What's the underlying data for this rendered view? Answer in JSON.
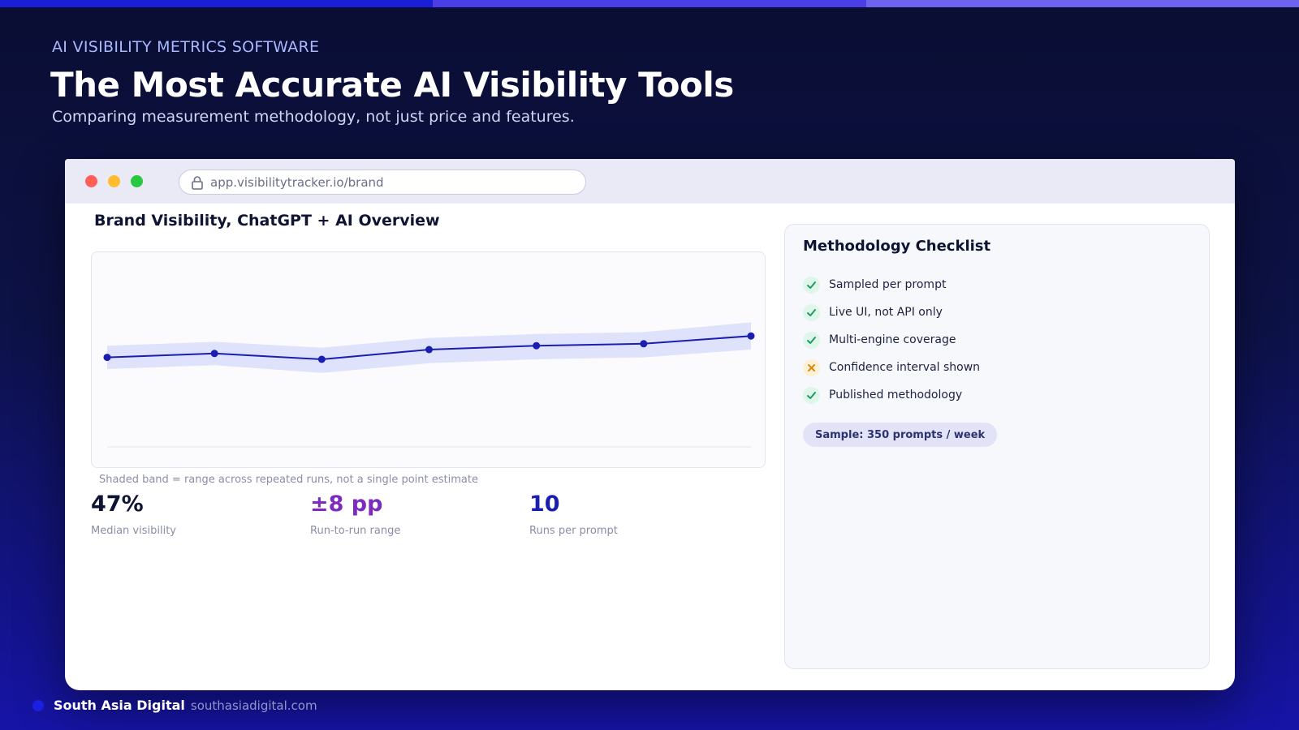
{
  "header": {
    "eyebrow": "AI VISIBILITY METRICS SOFTWARE",
    "title": "The Most Accurate AI Visibility Tools",
    "subtitle": "Comparing measurement methodology, not just price and features."
  },
  "browser": {
    "url": "app.visibilitytracker.io/brand"
  },
  "panel": {
    "title": "Brand Visibility, ChatGPT + AI Overview",
    "chart_note": "Shaded band = range across repeated runs, not a single point estimate"
  },
  "chart_data": {
    "type": "line",
    "title": "",
    "xlabel": "",
    "ylabel": "",
    "ylim": [
      0,
      100
    ],
    "series": [
      {
        "values": [
          46,
          48,
          45,
          50,
          52,
          53,
          57
        ],
        "band_low": [
          40,
          42,
          38,
          43,
          45,
          46,
          50
        ],
        "band_high": [
          52,
          54,
          51,
          56,
          58,
          59,
          64
        ]
      }
    ],
    "line_color": "#1a1fb0",
    "band_color": "#dfe2fb",
    "grid": false
  },
  "stats": [
    {
      "value": "47%",
      "label": "Median visibility"
    },
    {
      "value": "±8 pp",
      "label": "Run-to-run range"
    },
    {
      "value": "10",
      "label": "Runs per prompt"
    }
  ],
  "checklist": {
    "title": "Methodology Checklist",
    "items": [
      {
        "label": "Sampled per prompt",
        "status": "pass",
        "icon": "check-icon"
      },
      {
        "label": "Live UI, not API only",
        "status": "pass",
        "icon": "check-icon"
      },
      {
        "label": "Multi-engine coverage",
        "status": "pass",
        "icon": "check-icon"
      },
      {
        "label": "Confidence interval shown",
        "status": "fail",
        "icon": "x-icon"
      },
      {
        "label": "Published methodology",
        "status": "pass",
        "icon": "check-icon"
      }
    ],
    "sample": "Sample: 350 prompts / week"
  },
  "footer": {
    "brand": "South Asia Digital",
    "url": "southasiadigital.com"
  },
  "colors": {
    "accent": "#1a1fd6",
    "pass": "#1f9d63",
    "fail": "#d98a12",
    "median": "#0f1433",
    "range": "#7b2bbf",
    "runs": "#1a1fb0"
  }
}
